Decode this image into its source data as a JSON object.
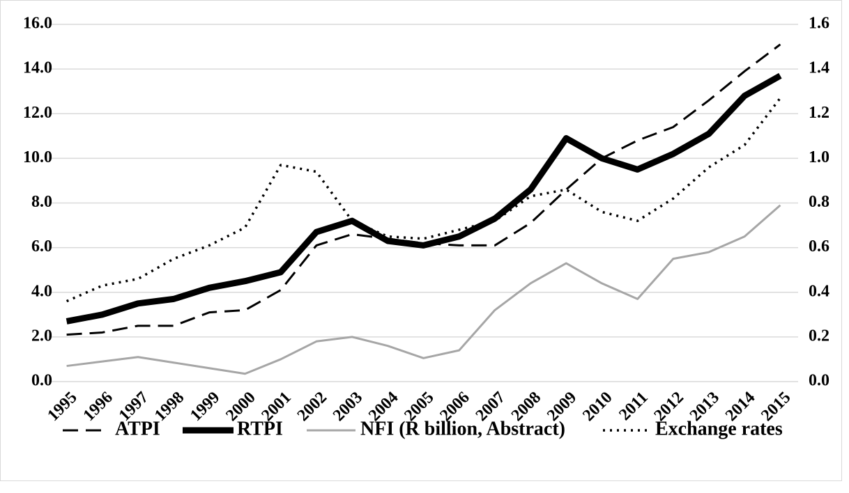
{
  "chart_data": {
    "type": "line",
    "categories": [
      "1995",
      "1996",
      "1997",
      "1998",
      "1999",
      "2000",
      "2001",
      "2002",
      "2003",
      "2004",
      "2005",
      "2006",
      "2007",
      "2008",
      "2009",
      "2010",
      "2011",
      "2012",
      "2013",
      "2014",
      "2015"
    ],
    "series": [
      {
        "name": "ATPI",
        "color": "#000000",
        "style": "dashed",
        "values": [
          2.1,
          2.2,
          2.5,
          2.5,
          3.1,
          3.2,
          4.1,
          6.1,
          6.6,
          6.4,
          6.2,
          6.1,
          6.1,
          7.1,
          8.6,
          10.0,
          10.8,
          11.4,
          12.6,
          13.9,
          15.1
        ]
      },
      {
        "name": "RTPI",
        "color": "#000000",
        "style": "thick",
        "values": [
          2.7,
          3.0,
          3.5,
          3.7,
          4.2,
          4.5,
          4.9,
          6.7,
          7.2,
          6.3,
          6.1,
          6.5,
          7.3,
          8.6,
          10.9,
          10.0,
          9.5,
          10.2,
          11.1,
          12.8,
          13.7
        ]
      },
      {
        "name": "NFI (R billion, Abstract)",
        "color": "#a6a6a6",
        "style": "solid",
        "values": [
          0.7,
          0.9,
          1.1,
          0.85,
          0.6,
          0.35,
          1.0,
          1.8,
          2.0,
          1.6,
          1.05,
          1.4,
          3.2,
          4.4,
          5.3,
          4.4,
          3.7,
          5.5,
          5.8,
          6.5,
          7.9
        ]
      },
      {
        "name": "Exchange rates",
        "color": "#000000",
        "style": "dotted",
        "axis": "y2",
        "values": [
          0.36,
          0.43,
          0.46,
          0.55,
          0.61,
          0.69,
          0.97,
          0.94,
          0.72,
          0.65,
          0.64,
          0.68,
          0.72,
          0.83,
          0.86,
          0.76,
          0.72,
          0.82,
          0.96,
          1.06,
          1.27
        ]
      }
    ],
    "ylim": [
      0,
      16
    ],
    "yticks": [
      {
        "value": 0,
        "label": "0.0"
      },
      {
        "value": 2,
        "label": "2.0"
      },
      {
        "value": 4,
        "label": "4.0"
      },
      {
        "value": 6,
        "label": "6.0"
      },
      {
        "value": 8,
        "label": "8.0"
      },
      {
        "value": 10,
        "label": "10.0"
      },
      {
        "value": 12,
        "label": "12.0"
      },
      {
        "value": 14,
        "label": "14.0"
      },
      {
        "value": 16,
        "label": "16.0"
      }
    ],
    "y2lim": [
      0,
      1.6
    ],
    "y2ticks": [
      {
        "value": 0,
        "label": "0.0"
      },
      {
        "value": 0.2,
        "label": "0.2"
      },
      {
        "value": 0.4,
        "label": "0.4"
      },
      {
        "value": 0.6,
        "label": "0.6"
      },
      {
        "value": 0.8,
        "label": "0.8"
      },
      {
        "value": 1.0,
        "label": "1.0"
      },
      {
        "value": 1.2,
        "label": "1.2"
      },
      {
        "value": 1.4,
        "label": "1.4"
      },
      {
        "value": 1.6,
        "label": "1.6"
      }
    ],
    "grid": true,
    "legend": "bottom"
  }
}
